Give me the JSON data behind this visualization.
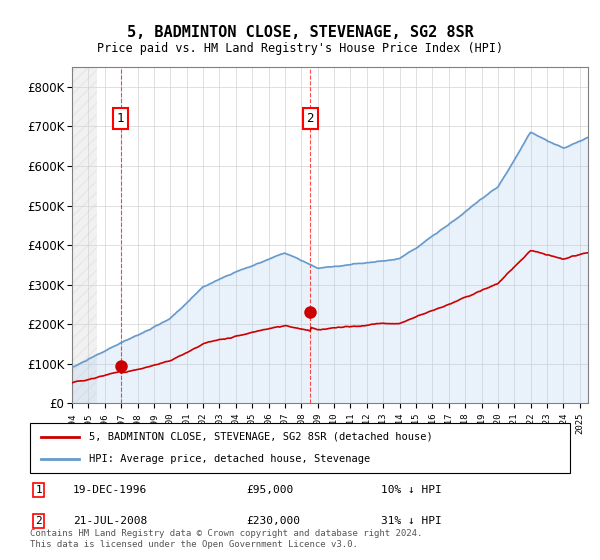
{
  "title": "5, BADMINTON CLOSE, STEVENAGE, SG2 8SR",
  "subtitle": "Price paid vs. HM Land Registry's House Price Index (HPI)",
  "property_label": "5, BADMINTON CLOSE, STEVENAGE, SG2 8SR (detached house)",
  "hpi_label": "HPI: Average price, detached house, Stevenage",
  "transaction1_label": "1",
  "transaction1_date": "19-DEC-1996",
  "transaction1_price": "£95,000",
  "transaction1_hpi": "10% ↓ HPI",
  "transaction2_label": "2",
  "transaction2_date": "21-JUL-2008",
  "transaction2_price": "£230,000",
  "transaction2_hpi": "31% ↓ HPI",
  "footer": "Contains HM Land Registry data © Crown copyright and database right 2024.\nThis data is licensed under the Open Government Licence v3.0.",
  "property_color": "#cc0000",
  "hpi_color": "#6699cc",
  "hpi_fill_color": "#aaccee",
  "transaction1_year": 1996.97,
  "transaction2_year": 2008.55,
  "ylim": [
    0,
    850000
  ],
  "yticks": [
    0,
    100000,
    200000,
    300000,
    400000,
    500000,
    600000,
    700000,
    800000
  ],
  "ylabel_format": "£{0}K",
  "xmin": 1994,
  "xmax": 2025.5
}
